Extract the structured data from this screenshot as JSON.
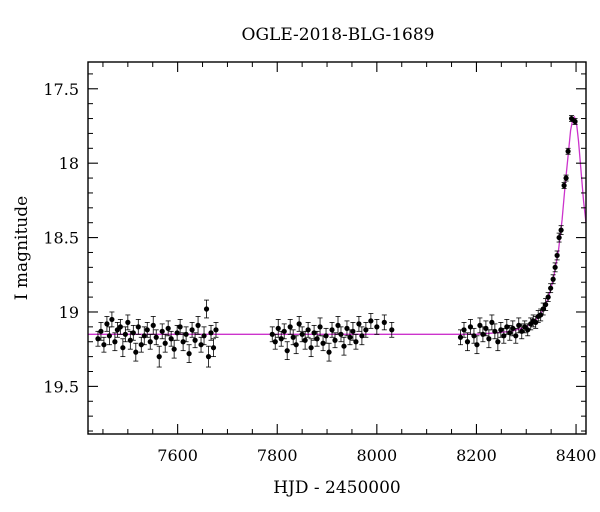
{
  "chart_data": {
    "type": "scatter",
    "title": "OGLE-2018-BLG-1689",
    "xlabel": "HJD - 2450000",
    "ylabel": "I magnitude",
    "xlim": [
      7420,
      8420
    ],
    "ylim": [
      19.82,
      17.32
    ],
    "y_inverted": true,
    "x_ticks": [
      7600,
      7800,
      8000,
      8200,
      8400
    ],
    "x_tick_labels": [
      "7600",
      "7800",
      "8000",
      "8200",
      "8400"
    ],
    "y_ticks": [
      17.5,
      18,
      18.5,
      19,
      19.5
    ],
    "y_tick_labels": [
      "17.5",
      "18",
      "18.5",
      "19",
      "19.5"
    ],
    "grid": false,
    "colors": {
      "points": "#000000",
      "model": "#cc33cc",
      "frame": "#000000"
    },
    "series": [
      {
        "kind": "data",
        "style": "black points with error bars",
        "points": [
          {
            "x": 7440,
            "y": 19.18,
            "err": 0.05
          },
          {
            "x": 7446,
            "y": 19.13,
            "err": 0.06
          },
          {
            "x": 7452,
            "y": 19.22,
            "err": 0.05
          },
          {
            "x": 7458,
            "y": 19.08,
            "err": 0.05
          },
          {
            "x": 7463,
            "y": 19.16,
            "err": 0.06
          },
          {
            "x": 7468,
            "y": 19.05,
            "err": 0.05
          },
          {
            "x": 7474,
            "y": 19.2,
            "err": 0.06
          },
          {
            "x": 7479,
            "y": 19.12,
            "err": 0.05
          },
          {
            "x": 7485,
            "y": 19.1,
            "err": 0.05
          },
          {
            "x": 7490,
            "y": 19.24,
            "err": 0.06
          },
          {
            "x": 7495,
            "y": 19.15,
            "err": 0.05
          },
          {
            "x": 7500,
            "y": 19.07,
            "err": 0.05
          },
          {
            "x": 7505,
            "y": 19.19,
            "err": 0.06
          },
          {
            "x": 7511,
            "y": 19.14,
            "err": 0.05
          },
          {
            "x": 7516,
            "y": 19.27,
            "err": 0.06
          },
          {
            "x": 7521,
            "y": 19.1,
            "err": 0.05
          },
          {
            "x": 7527,
            "y": 19.22,
            "err": 0.05
          },
          {
            "x": 7533,
            "y": 19.16,
            "err": 0.06
          },
          {
            "x": 7539,
            "y": 19.12,
            "err": 0.05
          },
          {
            "x": 7545,
            "y": 19.2,
            "err": 0.05
          },
          {
            "x": 7551,
            "y": 19.09,
            "err": 0.06
          },
          {
            "x": 7557,
            "y": 19.17,
            "err": 0.05
          },
          {
            "x": 7563,
            "y": 19.3,
            "err": 0.07
          },
          {
            "x": 7569,
            "y": 19.13,
            "err": 0.05
          },
          {
            "x": 7575,
            "y": 19.21,
            "err": 0.06
          },
          {
            "x": 7581,
            "y": 19.11,
            "err": 0.05
          },
          {
            "x": 7587,
            "y": 19.18,
            "err": 0.05
          },
          {
            "x": 7593,
            "y": 19.25,
            "err": 0.06
          },
          {
            "x": 7599,
            "y": 19.14,
            "err": 0.05
          },
          {
            "x": 7605,
            "y": 19.1,
            "err": 0.05
          },
          {
            "x": 7611,
            "y": 19.2,
            "err": 0.06
          },
          {
            "x": 7617,
            "y": 19.15,
            "err": 0.05
          },
          {
            "x": 7623,
            "y": 19.28,
            "err": 0.06
          },
          {
            "x": 7629,
            "y": 19.12,
            "err": 0.05
          },
          {
            "x": 7635,
            "y": 19.19,
            "err": 0.05
          },
          {
            "x": 7641,
            "y": 19.09,
            "err": 0.06
          },
          {
            "x": 7647,
            "y": 19.22,
            "err": 0.05
          },
          {
            "x": 7653,
            "y": 19.16,
            "err": 0.06
          },
          {
            "x": 7658,
            "y": 18.98,
            "err": 0.06
          },
          {
            "x": 7662,
            "y": 19.3,
            "err": 0.07
          },
          {
            "x": 7667,
            "y": 19.14,
            "err": 0.05
          },
          {
            "x": 7672,
            "y": 19.24,
            "err": 0.06
          },
          {
            "x": 7677,
            "y": 19.12,
            "err": 0.05
          },
          {
            "x": 7790,
            "y": 19.15,
            "err": 0.05
          },
          {
            "x": 7796,
            "y": 19.2,
            "err": 0.05
          },
          {
            "x": 7802,
            "y": 19.11,
            "err": 0.06
          },
          {
            "x": 7808,
            "y": 19.18,
            "err": 0.05
          },
          {
            "x": 7814,
            "y": 19.13,
            "err": 0.05
          },
          {
            "x": 7820,
            "y": 19.26,
            "err": 0.06
          },
          {
            "x": 7826,
            "y": 19.1,
            "err": 0.05
          },
          {
            "x": 7832,
            "y": 19.17,
            "err": 0.05
          },
          {
            "x": 7838,
            "y": 19.22,
            "err": 0.06
          },
          {
            "x": 7844,
            "y": 19.08,
            "err": 0.05
          },
          {
            "x": 7850,
            "y": 19.15,
            "err": 0.05
          },
          {
            "x": 7856,
            "y": 19.19,
            "err": 0.06
          },
          {
            "x": 7862,
            "y": 19.12,
            "err": 0.05
          },
          {
            "x": 7868,
            "y": 19.24,
            "err": 0.06
          },
          {
            "x": 7874,
            "y": 19.14,
            "err": 0.05
          },
          {
            "x": 7880,
            "y": 19.18,
            "err": 0.05
          },
          {
            "x": 7886,
            "y": 19.1,
            "err": 0.06
          },
          {
            "x": 7892,
            "y": 19.21,
            "err": 0.05
          },
          {
            "x": 7898,
            "y": 19.16,
            "err": 0.05
          },
          {
            "x": 7904,
            "y": 19.27,
            "err": 0.06
          },
          {
            "x": 7910,
            "y": 19.12,
            "err": 0.05
          },
          {
            "x": 7916,
            "y": 19.19,
            "err": 0.05
          },
          {
            "x": 7922,
            "y": 19.09,
            "err": 0.06
          },
          {
            "x": 7928,
            "y": 19.15,
            "err": 0.05
          },
          {
            "x": 7934,
            "y": 19.23,
            "err": 0.06
          },
          {
            "x": 7940,
            "y": 19.11,
            "err": 0.05
          },
          {
            "x": 7946,
            "y": 19.17,
            "err": 0.05
          },
          {
            "x": 7952,
            "y": 19.13,
            "err": 0.06
          },
          {
            "x": 7958,
            "y": 19.2,
            "err": 0.05
          },
          {
            "x": 7964,
            "y": 19.08,
            "err": 0.05
          },
          {
            "x": 7970,
            "y": 19.16,
            "err": 0.06
          },
          {
            "x": 7978,
            "y": 19.12,
            "err": 0.05
          },
          {
            "x": 7988,
            "y": 19.06,
            "err": 0.05
          },
          {
            "x": 8000,
            "y": 19.1,
            "err": 0.05
          },
          {
            "x": 8015,
            "y": 19.07,
            "err": 0.05
          },
          {
            "x": 8030,
            "y": 19.12,
            "err": 0.05
          },
          {
            "x": 8168,
            "y": 19.17,
            "err": 0.05
          },
          {
            "x": 8175,
            "y": 19.12,
            "err": 0.05
          },
          {
            "x": 8182,
            "y": 19.2,
            "err": 0.06
          },
          {
            "x": 8188,
            "y": 19.1,
            "err": 0.05
          },
          {
            "x": 8195,
            "y": 19.16,
            "err": 0.05
          },
          {
            "x": 8201,
            "y": 19.22,
            "err": 0.06
          },
          {
            "x": 8207,
            "y": 19.09,
            "err": 0.05
          },
          {
            "x": 8213,
            "y": 19.15,
            "err": 0.05
          },
          {
            "x": 8219,
            "y": 19.11,
            "err": 0.05
          },
          {
            "x": 8225,
            "y": 19.18,
            "err": 0.06
          },
          {
            "x": 8231,
            "y": 19.07,
            "err": 0.05
          },
          {
            "x": 8237,
            "y": 19.13,
            "err": 0.05
          },
          {
            "x": 8243,
            "y": 19.2,
            "err": 0.06
          },
          {
            "x": 8249,
            "y": 19.12,
            "err": 0.05
          },
          {
            "x": 8255,
            "y": 19.16,
            "err": 0.05
          },
          {
            "x": 8261,
            "y": 19.1,
            "err": 0.05
          },
          {
            "x": 8267,
            "y": 19.14,
            "err": 0.05
          },
          {
            "x": 8273,
            "y": 19.11,
            "err": 0.05
          },
          {
            "x": 8279,
            "y": 19.16,
            "err": 0.05
          },
          {
            "x": 8285,
            "y": 19.09,
            "err": 0.05
          },
          {
            "x": 8291,
            "y": 19.13,
            "err": 0.05
          },
          {
            "x": 8297,
            "y": 19.1,
            "err": 0.04
          },
          {
            "x": 8303,
            "y": 19.12,
            "err": 0.04
          },
          {
            "x": 8309,
            "y": 19.08,
            "err": 0.04
          },
          {
            "x": 8314,
            "y": 19.06,
            "err": 0.04
          },
          {
            "x": 8319,
            "y": 19.07,
            "err": 0.04
          },
          {
            "x": 8324,
            "y": 19.03,
            "err": 0.04
          },
          {
            "x": 8329,
            "y": 19.02,
            "err": 0.04
          },
          {
            "x": 8334,
            "y": 18.98,
            "err": 0.04
          },
          {
            "x": 8339,
            "y": 18.95,
            "err": 0.04
          },
          {
            "x": 8344,
            "y": 18.9,
            "err": 0.03
          },
          {
            "x": 8349,
            "y": 18.84,
            "err": 0.03
          },
          {
            "x": 8354,
            "y": 18.78,
            "err": 0.03
          },
          {
            "x": 8358,
            "y": 18.7,
            "err": 0.03
          },
          {
            "x": 8362,
            "y": 18.62,
            "err": 0.03
          },
          {
            "x": 8366,
            "y": 18.5,
            "err": 0.03
          },
          {
            "x": 8370,
            "y": 18.45,
            "err": 0.03
          },
          {
            "x": 8376,
            "y": 18.15,
            "err": 0.02
          },
          {
            "x": 8380,
            "y": 18.1,
            "err": 0.02
          },
          {
            "x": 8384,
            "y": 17.92,
            "err": 0.02
          },
          {
            "x": 8391,
            "y": 17.7,
            "err": 0.02
          },
          {
            "x": 8398,
            "y": 17.72,
            "err": 0.02
          }
        ]
      },
      {
        "kind": "model",
        "style": "magenta line",
        "points": [
          {
            "x": 7420,
            "y": 19.15
          },
          {
            "x": 8200,
            "y": 19.15
          },
          {
            "x": 8240,
            "y": 19.14
          },
          {
            "x": 8270,
            "y": 19.13
          },
          {
            "x": 8300,
            "y": 19.1
          },
          {
            "x": 8320,
            "y": 19.05
          },
          {
            "x": 8335,
            "y": 18.98
          },
          {
            "x": 8345,
            "y": 18.9
          },
          {
            "x": 8355,
            "y": 18.77
          },
          {
            "x": 8365,
            "y": 18.58
          },
          {
            "x": 8372,
            "y": 18.38
          },
          {
            "x": 8378,
            "y": 18.15
          },
          {
            "x": 8384,
            "y": 17.95
          },
          {
            "x": 8389,
            "y": 17.78
          },
          {
            "x": 8393,
            "y": 17.71
          },
          {
            "x": 8397,
            "y": 17.69
          },
          {
            "x": 8401,
            "y": 17.73
          },
          {
            "x": 8405,
            "y": 17.85
          },
          {
            "x": 8410,
            "y": 18.05
          },
          {
            "x": 8415,
            "y": 18.25
          },
          {
            "x": 8420,
            "y": 18.4
          }
        ]
      }
    ]
  }
}
